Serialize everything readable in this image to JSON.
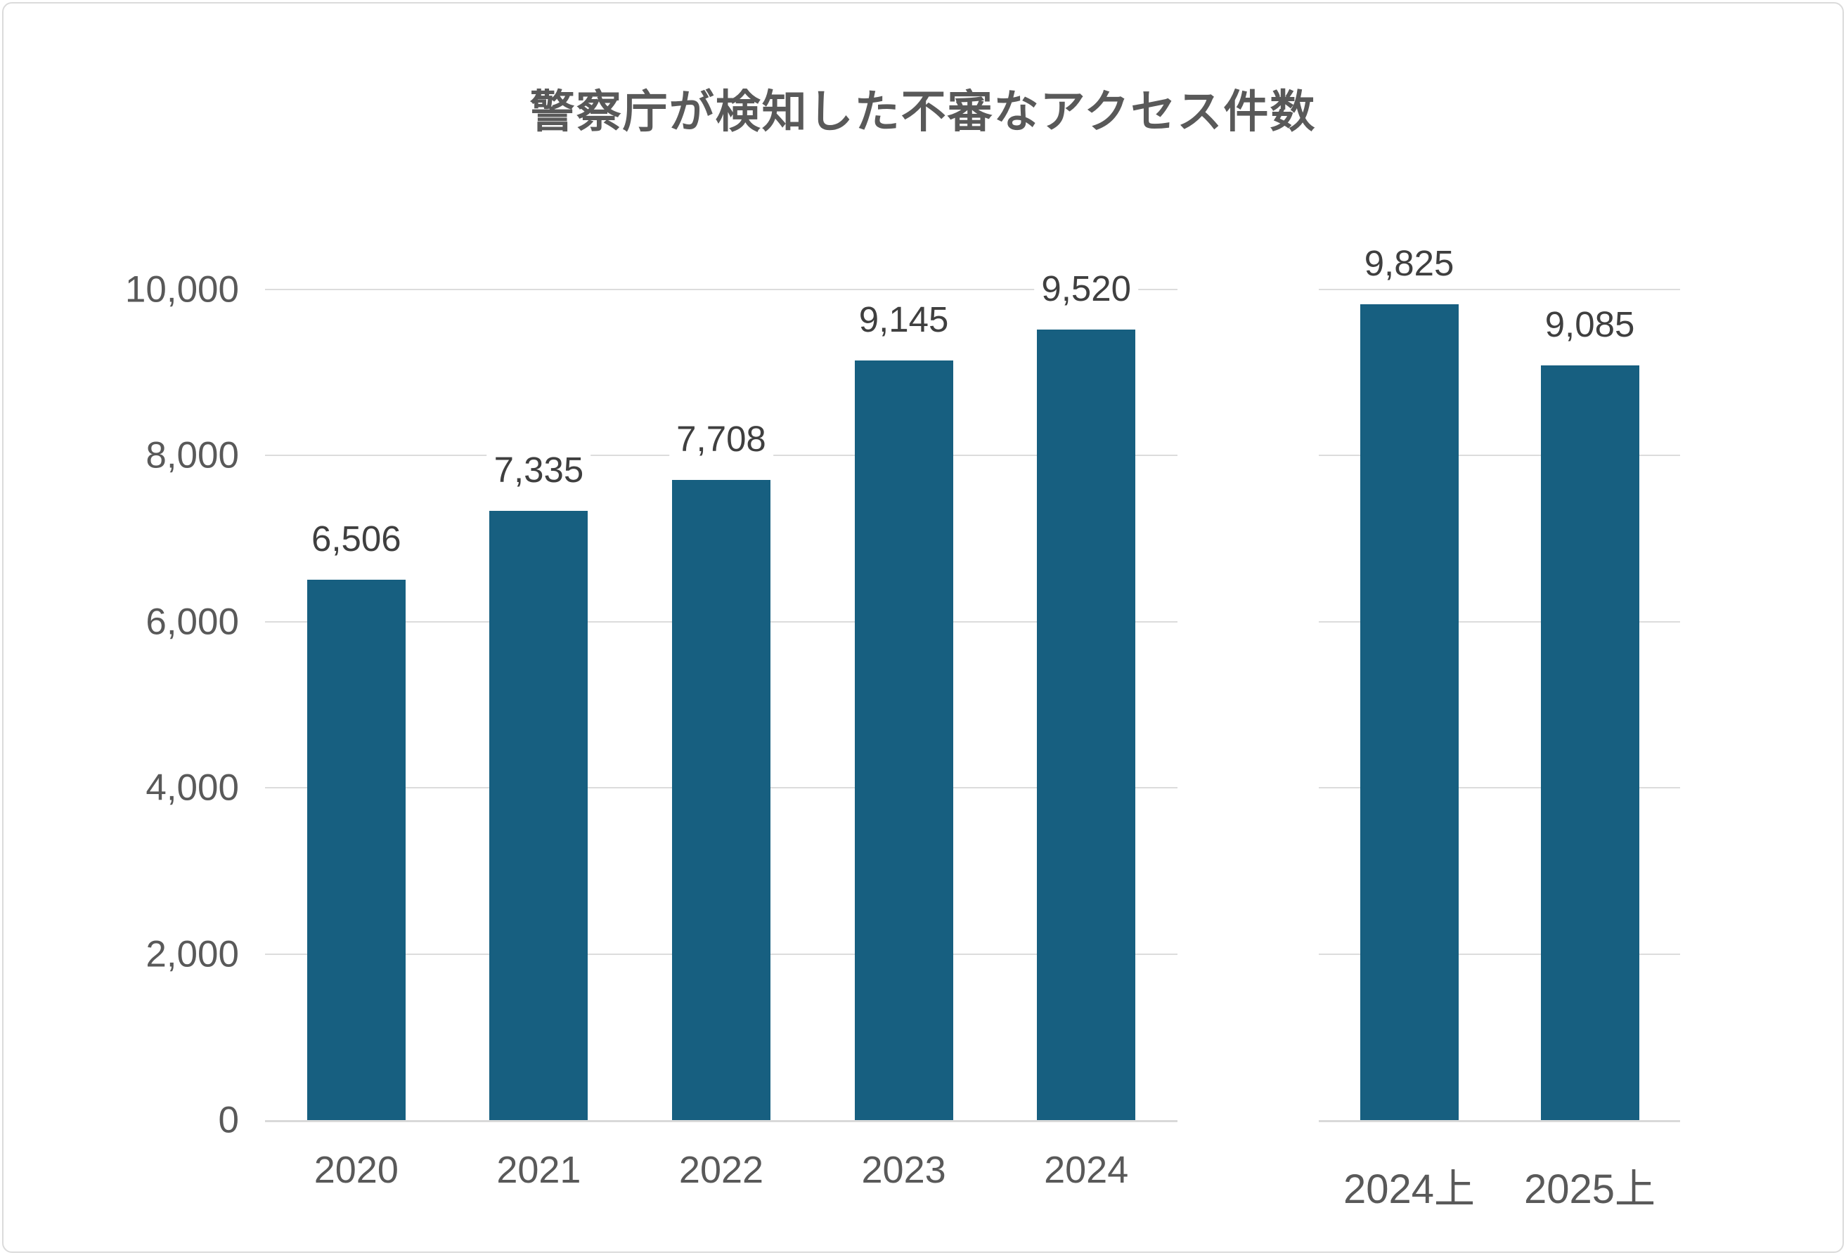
{
  "chart_data": {
    "type": "bar",
    "title": "警察庁が検知した不審なアクセス件数",
    "xlabel": "",
    "ylabel": "",
    "ylim": [
      0,
      10000
    ],
    "ytick_interval": 2000,
    "grid": true,
    "legend": false,
    "bar_color": "#175F80",
    "gridline_color": "#DCDCDC",
    "title_color": "#595959",
    "axis_label_color": "#595959",
    "value_label_color": "#3F3F3F",
    "yticks": [
      {
        "value": 10000,
        "label": "10,000"
      },
      {
        "value": 8000,
        "label": "8,000"
      },
      {
        "value": 6000,
        "label": "6,000"
      },
      {
        "value": 4000,
        "label": "4,000"
      },
      {
        "value": 2000,
        "label": "2,000"
      },
      {
        "value": 0,
        "label": "0"
      }
    ],
    "groups": [
      {
        "name": "annual",
        "categories": [
          "2020",
          "2021",
          "2022",
          "2023",
          "2024"
        ],
        "values": [
          6506,
          7335,
          7708,
          9145,
          9520
        ],
        "value_labels": [
          "6,506",
          "7,335",
          "7,708",
          "9,145",
          "9,520"
        ]
      },
      {
        "name": "first-half-year",
        "categories": [
          "2024上",
          "2025上"
        ],
        "values": [
          9825,
          9085
        ],
        "value_labels": [
          "9,825",
          "9,085"
        ]
      }
    ]
  }
}
